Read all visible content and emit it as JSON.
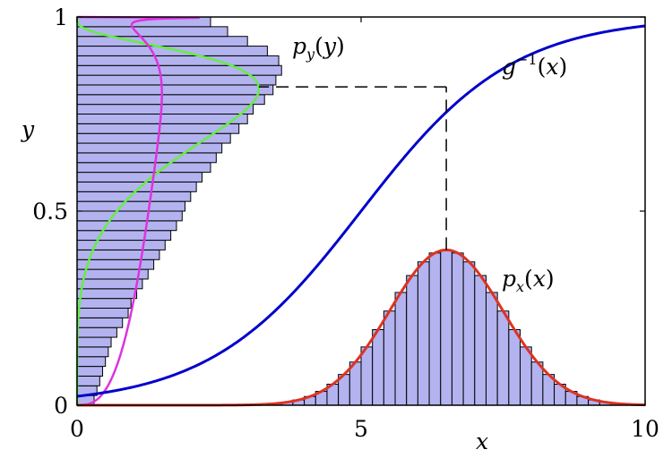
{
  "chart_data": {
    "type": "line",
    "title": "",
    "xlabel": "x",
    "ylabel": "y",
    "xlim": [
      0,
      10
    ],
    "ylim": [
      0,
      1
    ],
    "grid": false,
    "x_ticks": [
      0,
      5,
      10
    ],
    "y_ticks": [
      0,
      0.5,
      1
    ],
    "x_tick_labels": [
      "0",
      "5",
      "10"
    ],
    "y_tick_labels": [
      "0",
      "0.5",
      "1"
    ],
    "colors": {
      "g_inverse": "#0000cc",
      "p_x": "#dd3322",
      "p_y": "#dd33dd",
      "green_curve": "#66ee44",
      "histogram_fill": "#b3b3f0",
      "histogram_edge": "#000000",
      "dashed_line": "#000000"
    },
    "series": [
      {
        "id": "g_inverse",
        "label_text": "g^{-1}(x)",
        "sigmoid_center": 5,
        "sigmoid_slope": 0.75
      },
      {
        "id": "p_x",
        "label_text": "p_x(x)",
        "gaussian_mean": 6.5,
        "gaussian_std": 1.0,
        "peak_value": 0.4
      },
      {
        "id": "p_y",
        "label_text": "p_y(y)",
        "peak_x": 3.4,
        "peak_y": 0.92
      },
      {
        "id": "green_curve",
        "peak_x": 3.2,
        "peak_y": 0.82
      }
    ],
    "histogram_x": {
      "bin_width": 0.2,
      "range": [
        0,
        10
      ]
    },
    "histogram_y": {
      "bin_width": 0.025,
      "range": [
        0,
        1
      ],
      "counts": [
        0.3,
        0.35,
        0.4,
        0.45,
        0.5,
        0.55,
        0.6,
        0.7,
        0.8,
        0.9,
        0.95,
        1.05,
        1.15,
        1.25,
        1.35,
        1.45,
        1.55,
        1.65,
        1.75,
        1.85,
        1.9,
        2.0,
        2.1,
        2.2,
        2.35,
        2.45,
        2.55,
        2.7,
        2.85,
        3.0,
        3.1,
        3.3,
        3.45,
        3.5,
        3.6,
        3.55,
        3.35,
        3.0,
        2.65,
        2.35
      ]
    },
    "mapping": {
      "x": 6.5,
      "y": 0.82
    }
  }
}
